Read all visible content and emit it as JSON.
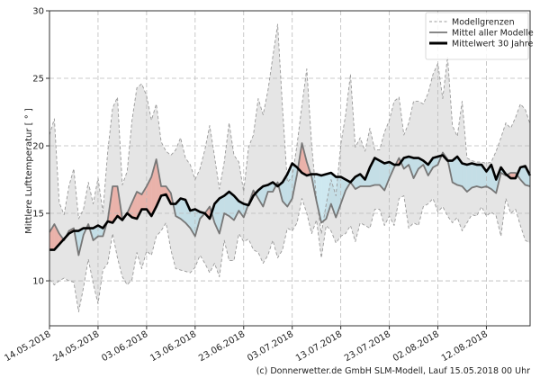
{
  "chart_data": {
    "type": "area",
    "title": "",
    "xlabel": "",
    "ylabel": "Mittlere Lufttemperatur [ ° ]",
    "x_start": "14.05.2018",
    "x_step_days": 1,
    "xlim_days": [
      0,
      99
    ],
    "ylim": [
      6.67,
      30
    ],
    "grid": true,
    "legend_position": "top-right",
    "x_tick_labels": [
      "14.05.2018",
      "24.05.2018",
      "03.06.2018",
      "13.06.2018",
      "23.06.2018",
      "03.07.2018",
      "13.07.2018",
      "23.07.2018",
      "02.08.2018",
      "12.08.2018"
    ],
    "y_ticks": [
      10,
      15,
      20,
      25,
      30
    ],
    "y_tick_labels": [
      "10",
      "15",
      "20",
      "25",
      "30"
    ],
    "colors": {
      "range_fill": "#e5e5e5",
      "range_line": "#999999",
      "model_mean": "#777777",
      "climate_mean": "#000000",
      "above_fill": "#f08070",
      "below_fill": "#add8e6"
    },
    "series": [
      {
        "name": "Modellgrenzen",
        "role": "upper",
        "values": [
          20.8,
          22.0,
          15.8,
          14.9,
          17.0,
          18.3,
          14.6,
          15.3,
          17.3,
          15.7,
          17.6,
          15.1,
          19.6,
          22.8,
          23.6,
          17.1,
          18.1,
          21.9,
          24.3,
          24.6,
          23.7,
          21.9,
          23.1,
          20.3,
          19.6,
          19.3,
          19.7,
          20.6,
          19.1,
          18.6,
          17.5,
          18.3,
          19.7,
          21.5,
          19.2,
          16.8,
          18.8,
          21.7,
          19.3,
          18.8,
          16.6,
          19.9,
          20.8,
          23.5,
          22.3,
          24.1,
          26.6,
          29.0,
          22.8,
          17.3,
          17.7,
          20.1,
          23.0,
          25.7,
          20.1,
          16.1,
          13.5,
          15.7,
          17.5,
          16.3,
          20.1,
          22.3,
          25.3,
          19.9,
          20.6,
          19.6,
          21.3,
          19.7,
          19.7,
          21.0,
          21.9,
          23.3,
          23.6,
          20.8,
          21.7,
          23.3,
          23.3,
          23.1,
          23.9,
          25.3,
          26.1,
          23.5,
          26.6,
          21.5,
          20.7,
          23.3,
          19.1,
          18.9,
          18.8,
          18.8,
          18.7,
          18.8,
          19.6,
          20.6,
          21.7,
          21.3,
          22.1,
          23.1,
          22.7,
          21.6
        ]
      },
      {
        "name": "Modellgrenzen",
        "role": "lower",
        "values": [
          10.1,
          9.7,
          10.0,
          10.2,
          10.0,
          9.9,
          7.7,
          9.5,
          11.6,
          9.8,
          8.3,
          10.8,
          11.3,
          13.5,
          11.7,
          10.3,
          9.7,
          10.1,
          12.1,
          10.9,
          12.2,
          11.9,
          13.3,
          13.7,
          14.3,
          12.3,
          10.9,
          10.8,
          10.7,
          10.6,
          11.0,
          11.9,
          11.3,
          10.6,
          11.3,
          10.3,
          13.0,
          11.5,
          11.5,
          13.5,
          12.9,
          13.1,
          12.3,
          12.1,
          11.3,
          11.9,
          13.0,
          11.7,
          12.3,
          13.9,
          13.7,
          14.3,
          16.1,
          15.0,
          13.5,
          14.5,
          11.7,
          14.1,
          13.7,
          12.8,
          13.3,
          13.5,
          14.1,
          12.9,
          14.3,
          14.1,
          13.9,
          15.3,
          15.3,
          14.1,
          14.8,
          14.1,
          16.1,
          16.3,
          13.9,
          14.3,
          14.1,
          15.5,
          15.7,
          16.1,
          15.1,
          15.5,
          14.8,
          14.3,
          14.7,
          13.7,
          14.3,
          14.9,
          14.8,
          15.5,
          14.8,
          15.1,
          14.8,
          13.3,
          16.1,
          15.0,
          15.3,
          14.1,
          13.0,
          12.8
        ]
      },
      {
        "name": "Mittel aller Modelle",
        "values": [
          13.6,
          14.2,
          13.5,
          13.0,
          13.7,
          13.9,
          11.9,
          13.4,
          14.2,
          13.0,
          13.3,
          13.3,
          14.5,
          17.0,
          17.0,
          14.6,
          15.0,
          15.8,
          16.6,
          16.4,
          17.0,
          17.7,
          19.0,
          17.0,
          17.0,
          16.5,
          14.8,
          14.6,
          14.3,
          13.9,
          13.3,
          14.6,
          15.0,
          15.5,
          14.3,
          13.5,
          15.0,
          14.8,
          14.5,
          15.2,
          14.7,
          15.7,
          16.7,
          16.1,
          15.5,
          16.6,
          16.6,
          17.3,
          15.9,
          15.5,
          16.1,
          17.9,
          20.2,
          18.8,
          17.7,
          15.9,
          14.3,
          14.6,
          15.7,
          14.7,
          15.7,
          16.7,
          17.3,
          16.8,
          17.0,
          17.0,
          17.0,
          17.1,
          17.1,
          16.7,
          17.6,
          18.4,
          19.1,
          18.3,
          18.6,
          17.6,
          18.3,
          18.6,
          17.8,
          18.4,
          18.6,
          19.5,
          19.0,
          17.3,
          17.1,
          17.0,
          16.6,
          16.9,
          17.0,
          16.9,
          17.0,
          16.8,
          16.5,
          18.0,
          17.8,
          18.0,
          18.0,
          17.5,
          17.1,
          17.0
        ]
      },
      {
        "name": "Mittelwert 30 Jahre",
        "values": [
          12.3,
          12.3,
          12.7,
          13.1,
          13.5,
          13.7,
          13.7,
          13.9,
          13.9,
          13.9,
          14.1,
          13.9,
          14.4,
          14.3,
          14.8,
          14.5,
          15.0,
          14.7,
          14.6,
          15.3,
          15.3,
          14.8,
          15.5,
          16.3,
          16.4,
          15.7,
          15.7,
          16.1,
          16.0,
          15.2,
          15.3,
          15.1,
          15.0,
          14.6,
          15.7,
          16.1,
          16.3,
          16.6,
          16.3,
          15.9,
          15.7,
          15.6,
          16.3,
          16.7,
          17.0,
          17.1,
          17.3,
          17.0,
          17.3,
          17.9,
          18.7,
          18.4,
          18.0,
          17.8,
          17.9,
          17.9,
          17.8,
          17.9,
          18.0,
          17.7,
          17.7,
          17.5,
          17.3,
          17.7,
          17.9,
          17.5,
          18.4,
          19.1,
          18.9,
          18.7,
          18.8,
          18.6,
          18.6,
          19.1,
          19.2,
          19.1,
          19.1,
          18.9,
          18.6,
          19.1,
          19.2,
          19.3,
          18.9,
          18.9,
          19.2,
          18.7,
          18.6,
          18.7,
          18.6,
          18.6,
          18.1,
          18.6,
          17.5,
          18.4,
          17.9,
          17.6,
          17.6,
          18.4,
          18.5,
          17.8
        ]
      }
    ]
  },
  "legend": {
    "items": [
      "Modellgrenzen",
      "Mittel aller Modelle",
      "Mittelwert 30 Jahre"
    ]
  },
  "footer": "(c) Donnerwetter.de GmbH SLM-Modell, Lauf 15.05.2018 00 Uhr"
}
